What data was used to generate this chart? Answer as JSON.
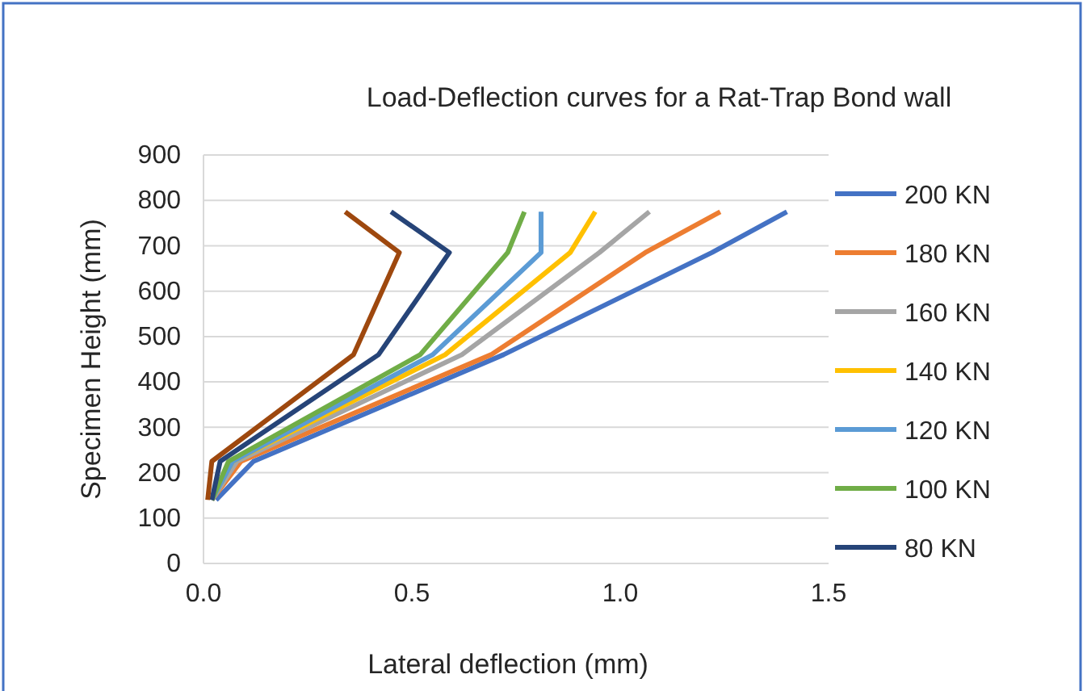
{
  "chart_data": {
    "type": "line",
    "title": "Load-Deflection curves for a Rat-Trap Bond wall",
    "xlabel": "Lateral deflection (mm)",
    "ylabel": "Specimen Height (mm)",
    "xlim": [
      0,
      1.5
    ],
    "xticks": [
      {
        "value": 0,
        "label": "0.0"
      },
      {
        "value": 0.5,
        "label": "0.5"
      },
      {
        "value": 1,
        "label": "1.0"
      },
      {
        "value": 1.5,
        "label": "1.5"
      }
    ],
    "ylim": [
      0,
      900
    ],
    "yticks": [
      0,
      100,
      200,
      300,
      400,
      500,
      600,
      700,
      800,
      900
    ],
    "grid": "y",
    "legend": "right",
    "marker": "none",
    "line_style": "solid",
    "series": [
      {
        "name": "200 KN",
        "color": "#4472c4",
        "x": [
          0.03,
          0.12,
          0.72,
          1.22,
          1.4
        ],
        "values": [
          140,
          225,
          460,
          685,
          775
        ]
      },
      {
        "name": "180 KN",
        "color": "#ed7d31",
        "x": [
          0.02,
          0.09,
          0.69,
          1.06,
          1.24
        ],
        "values": [
          140,
          225,
          460,
          685,
          775
        ]
      },
      {
        "name": "160 KN",
        "color": "#a5a5a5",
        "x": [
          0.02,
          0.08,
          0.62,
          0.95,
          1.07
        ],
        "values": [
          140,
          225,
          460,
          685,
          775
        ]
      },
      {
        "name": "140 KN",
        "color": "#ffc000",
        "x": [
          0.02,
          0.07,
          0.58,
          0.88,
          0.94
        ],
        "values": [
          140,
          225,
          460,
          685,
          775
        ]
      },
      {
        "name": "120 KN",
        "color": "#5b9bd5",
        "x": [
          0.02,
          0.07,
          0.55,
          0.81,
          0.81
        ],
        "values": [
          140,
          225,
          460,
          685,
          775
        ]
      },
      {
        "name": "100 KN",
        "color": "#70ad47",
        "x": [
          0.02,
          0.06,
          0.52,
          0.73,
          0.77
        ],
        "values": [
          140,
          225,
          460,
          685,
          775
        ]
      },
      {
        "name": "80 KN",
        "color": "#264478",
        "x": [
          0.02,
          0.04,
          0.42,
          0.59,
          0.45
        ],
        "values": [
          140,
          225,
          460,
          685,
          775
        ]
      },
      {
        "color": "#9e480e",
        "x": [
          0.01,
          0.02,
          0.36,
          0.47,
          0.34
        ],
        "values": [
          140,
          225,
          460,
          685,
          775
        ]
      }
    ]
  }
}
